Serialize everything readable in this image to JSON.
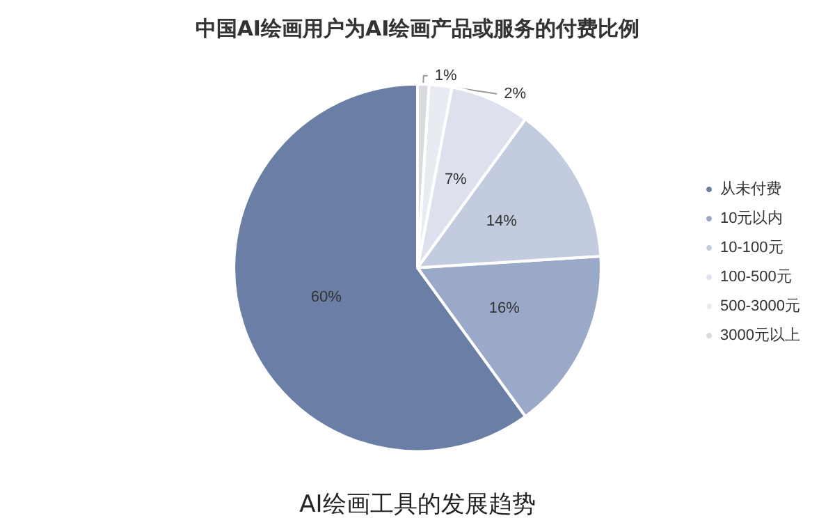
{
  "chart_data": {
    "type": "pie",
    "title": "中国AI绘画用户为AI绘画产品或服务的付费比例",
    "categories": [
      "从未付费",
      "10元以内",
      "10-100元",
      "100-500元",
      "500-3000元",
      "3000元以上"
    ],
    "values": [
      60,
      16,
      14,
      7,
      2,
      1
    ],
    "colors": [
      "#6b7fa6",
      "#9ba9c9",
      "#c3cbdf",
      "#dce1ed",
      "#e8ebf2",
      "#d9dadd"
    ],
    "value_labels": [
      "60%",
      "16%",
      "14%",
      "7%",
      "2%",
      "1%"
    ],
    "legend": "right",
    "annotations": [
      "AI绘画工具的发展趋势"
    ]
  }
}
